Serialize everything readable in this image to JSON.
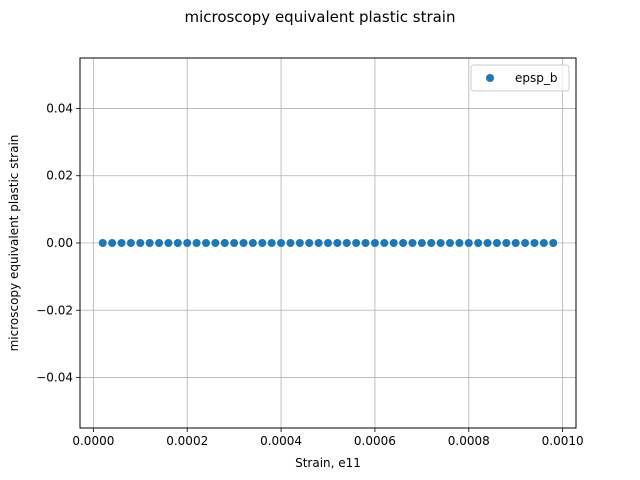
{
  "chart_data": {
    "type": "scatter",
    "title": "microscopy equivalent plastic strain",
    "xlabel": "Strain, e11",
    "ylabel": "microscopy equivalent plastic strain",
    "xlim": [
      -2.85e-05,
      0.0010285
    ],
    "ylim": [
      -0.055,
      0.055
    ],
    "xticks": [
      0.0,
      0.0002,
      0.0004,
      0.0006,
      0.0008,
      0.001
    ],
    "xtick_labels": [
      "0.0000",
      "0.0002",
      "0.0004",
      "0.0006",
      "0.0008",
      "0.0010"
    ],
    "yticks": [
      -0.04,
      -0.02,
      0.0,
      0.02,
      0.04
    ],
    "ytick_labels": [
      "−0.04",
      "−0.02",
      "0.00",
      "0.02",
      "0.04"
    ],
    "grid": true,
    "legend_position": "top-right",
    "series": [
      {
        "name": "epsp_b",
        "color": "#1f77b4",
        "marker": "circle",
        "x": [
          2e-05,
          4e-05,
          6e-05,
          8e-05,
          0.0001,
          0.00012,
          0.00014,
          0.00016,
          0.00018,
          0.0002,
          0.00022,
          0.00024,
          0.00026,
          0.00028,
          0.0003,
          0.00032,
          0.00034,
          0.00036,
          0.00038,
          0.0004,
          0.00042,
          0.00044,
          0.00046,
          0.00048,
          0.0005,
          0.00052,
          0.00054,
          0.00056,
          0.00058,
          0.0006,
          0.00062,
          0.00064,
          0.00066,
          0.00068,
          0.0007,
          0.00072,
          0.00074,
          0.00076,
          0.00078,
          0.0008,
          0.00082,
          0.00084,
          0.00086,
          0.00088,
          0.0009,
          0.00092,
          0.00094,
          0.00096,
          0.00098
        ],
        "y": [
          0,
          0,
          0,
          0,
          0,
          0,
          0,
          0,
          0,
          0,
          0,
          0,
          0,
          0,
          0,
          0,
          0,
          0,
          0,
          0,
          0,
          0,
          0,
          0,
          0,
          0,
          0,
          0,
          0,
          0,
          0,
          0,
          0,
          0,
          0,
          0,
          0,
          0,
          0,
          0,
          0,
          0,
          0,
          0,
          0,
          0,
          0,
          0,
          0
        ]
      }
    ]
  }
}
